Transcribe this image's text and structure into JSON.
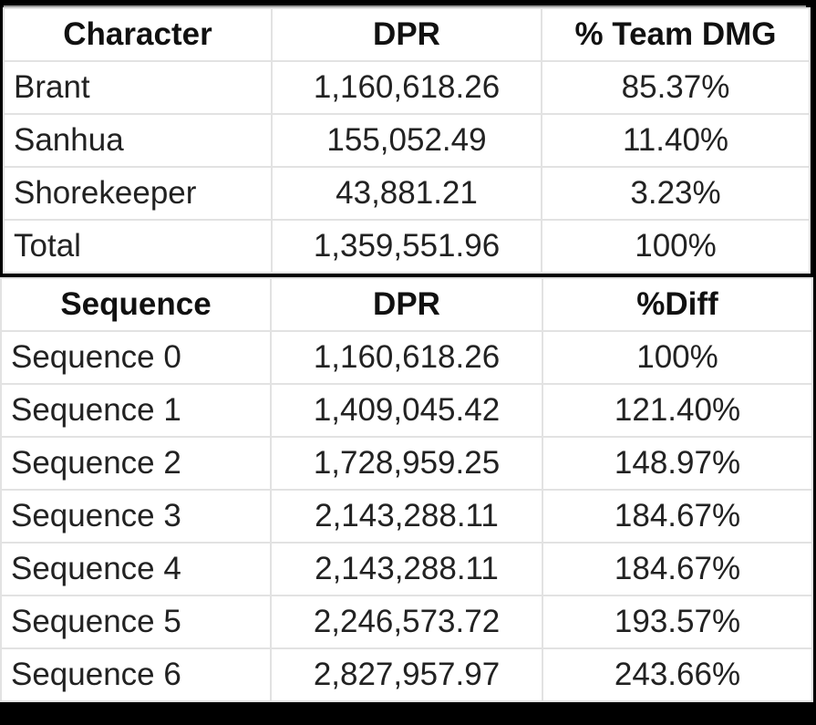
{
  "character_table": {
    "headers": [
      "Character",
      "DPR",
      "% Team DMG"
    ],
    "rows": [
      {
        "name": "Brant",
        "dpr": "1,160,618.26",
        "pct": "85.37%"
      },
      {
        "name": "Sanhua",
        "dpr": "155,052.49",
        "pct": "11.40%"
      },
      {
        "name": "Shorekeeper",
        "dpr": "43,881.21",
        "pct": "3.23%"
      },
      {
        "name": "Total",
        "dpr": "1,359,551.96",
        "pct": "100%"
      }
    ]
  },
  "sequence_table": {
    "headers": [
      "Sequence",
      "DPR",
      "%Diff"
    ],
    "rows": [
      {
        "name": "Sequence 0",
        "dpr": "1,160,618.26",
        "pct": "100%"
      },
      {
        "name": "Sequence 1",
        "dpr": "1,409,045.42",
        "pct": "121.40%"
      },
      {
        "name": "Sequence 2",
        "dpr": "1,728,959.25",
        "pct": "148.97%"
      },
      {
        "name": "Sequence 3",
        "dpr": "2,143,288.11",
        "pct": "184.67%"
      },
      {
        "name": "Sequence 4",
        "dpr": "2,143,288.11",
        "pct": "184.67%"
      },
      {
        "name": "Sequence 5",
        "dpr": "2,246,573.72",
        "pct": "193.57%"
      },
      {
        "name": "Sequence 6",
        "dpr": "2,827,957.97",
        "pct": "243.66%"
      }
    ]
  }
}
